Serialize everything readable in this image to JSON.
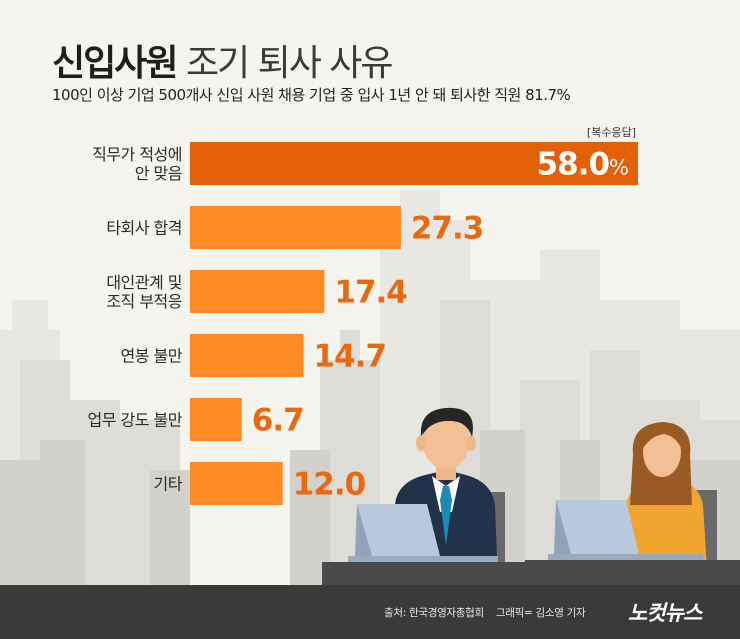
{
  "header": {
    "title_strong": "신입사원",
    "title_rest": "조기 퇴사 사유",
    "subtitle": "100인 이상 기업 500개사 신입 사원 채용 기업 중 입사 1년 안 돼 퇴사한 직원 81.7%",
    "note": "[복수응답]"
  },
  "chart_data": {
    "type": "bar",
    "orientation": "horizontal",
    "categories": [
      "직무가 적성에\n안 맞음",
      "타회사 합격",
      "대인관계 및\n조직 부적응",
      "연봉 불만",
      "업무 강도 불만",
      "기타"
    ],
    "values": [
      58.0,
      27.3,
      17.4,
      14.7,
      6.7,
      12.0
    ],
    "value_labels": [
      "58.0%",
      "27.3",
      "17.4",
      "14.7",
      "6.7",
      "12.0"
    ],
    "xlim": [
      0,
      58.0
    ],
    "title": "신입사원 조기 퇴사 사유",
    "grid": false,
    "legend": "none",
    "colors": {
      "highlight": "#e35f08",
      "bar": "#ff8a26",
      "highlight_label": "#ffffff",
      "label": "#e86a10"
    }
  },
  "footer": {
    "source": "출처: 한국경영자총협회",
    "graphic": "그래픽= 김소영 기자",
    "logo": "노컷뉴스"
  }
}
